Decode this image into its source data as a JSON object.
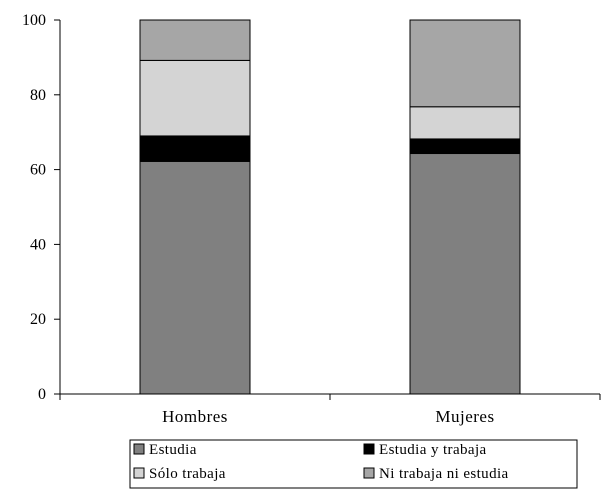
{
  "chart_data": {
    "type": "bar",
    "stacked": true,
    "title": "",
    "xlabel": "",
    "ylabel": "",
    "categories": [
      "Hombres",
      "Mujeres"
    ],
    "ylim": [
      0,
      100
    ],
    "yticks": [
      "0",
      "20",
      "40",
      "60",
      "80",
      "100"
    ],
    "grid": false,
    "legend_position": "bottom",
    "series": [
      {
        "name": "Estudia",
        "values": [
          62.2,
          64.3
        ],
        "color": "#808080"
      },
      {
        "name": "Estudia y trabaja",
        "values": [
          6.8,
          3.9
        ],
        "color": "#000000"
      },
      {
        "name": "Sólo trabaja",
        "values": [
          20.2,
          8.6
        ],
        "color": "#d4d4d4"
      },
      {
        "name": "Ni trabaja ni estudia",
        "values": [
          10.8,
          23.2
        ],
        "color": "#a6a6a6"
      }
    ]
  }
}
